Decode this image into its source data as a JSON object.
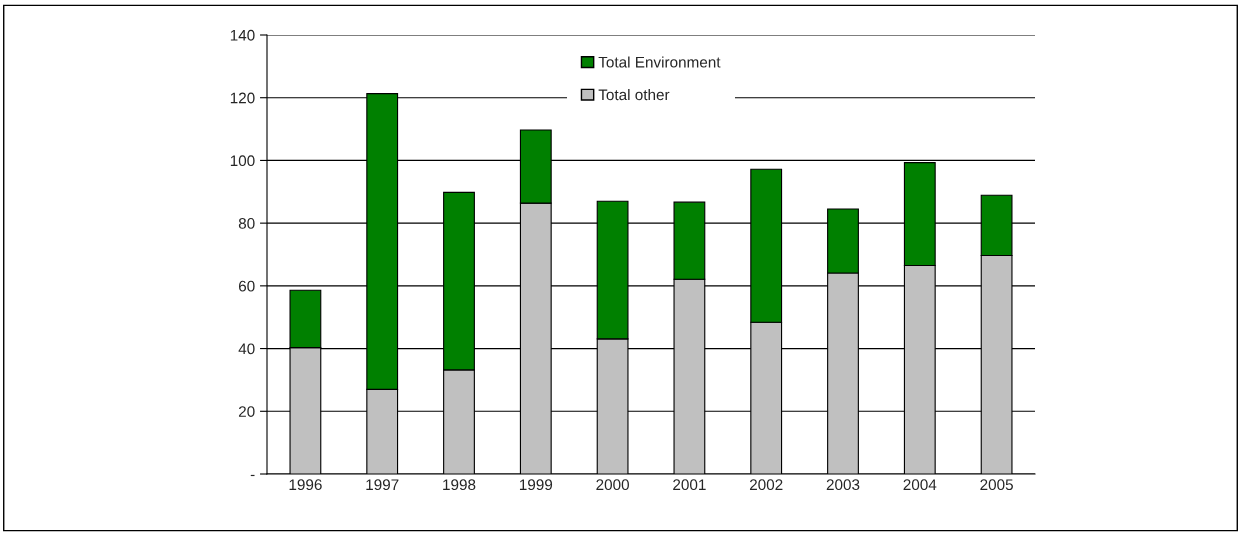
{
  "chart_data": {
    "type": "bar",
    "stacked": true,
    "categories": [
      "1996",
      "1997",
      "1998",
      "1999",
      "2000",
      "2001",
      "2002",
      "2003",
      "2004",
      "2005"
    ],
    "series": [
      {
        "name": "Total other",
        "color": "#c0c0c0",
        "values": [
          40.3,
          27.0,
          33.2,
          86.4,
          43.1,
          62.1,
          48.4,
          64.1,
          66.5,
          69.7
        ]
      },
      {
        "name": "Total Environment",
        "color": "#008000",
        "values": [
          18.3,
          94.3,
          56.6,
          23.3,
          43.9,
          24.6,
          48.8,
          20.4,
          32.8,
          19.2
        ]
      }
    ],
    "ylim": [
      0,
      140
    ],
    "yticks": [
      {
        "value": 0,
        "label": "-"
      },
      20,
      40,
      60,
      80,
      100,
      120,
      140
    ],
    "grid": "y",
    "legend": "top"
  }
}
